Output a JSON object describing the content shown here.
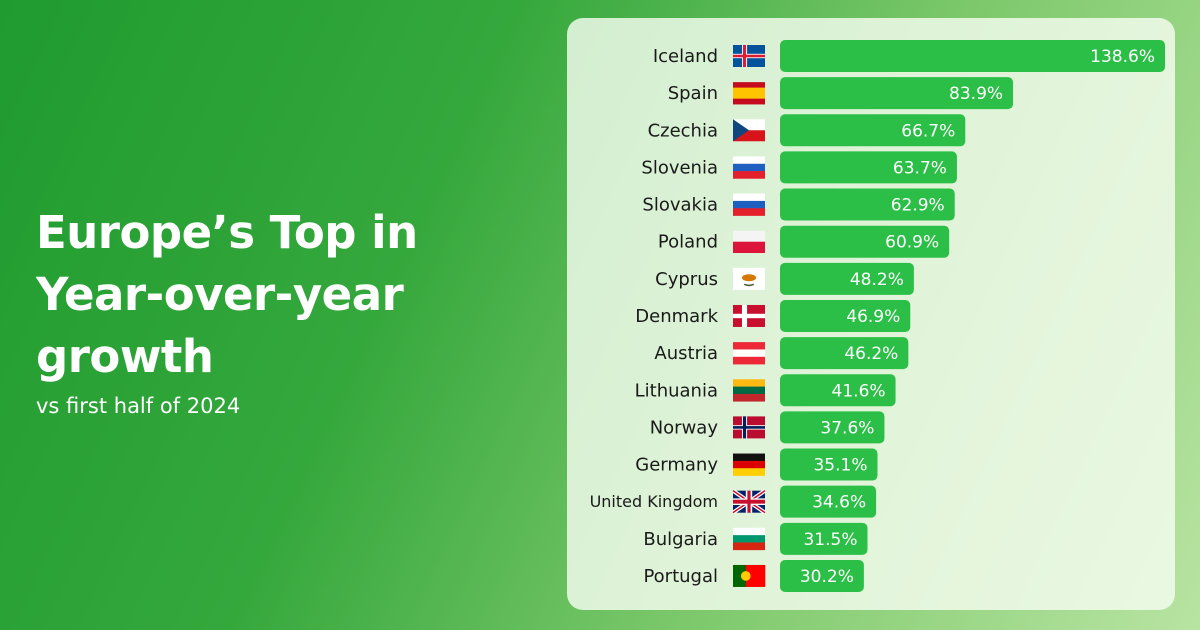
{
  "chart_data": {
    "type": "bar",
    "orientation": "horizontal",
    "title": "Europe’s Top in Year-over-year growth",
    "subtitle": "vs first half of 2024",
    "categories": [
      "Iceland",
      "Spain",
      "Czechia",
      "Slovenia",
      "Slovakia",
      "Poland",
      "Cyprus",
      "Denmark",
      "Austria",
      "Lithuania",
      "Norway",
      "Germany",
      "United Kingdom",
      "Bulgaria",
      "Portugal"
    ],
    "values": [
      138.6,
      83.9,
      66.7,
      63.7,
      62.9,
      60.9,
      48.2,
      46.9,
      46.2,
      41.6,
      37.6,
      35.1,
      34.6,
      31.5,
      30.2
    ],
    "value_labels": [
      "138.6%",
      "83.9%",
      "66.7%",
      "63.7%",
      "62.9%",
      "60.9%",
      "48.2%",
      "46.9%",
      "46.2%",
      "41.6%",
      "37.6%",
      "35.1%",
      "34.6%",
      "31.5%",
      "30.2%"
    ],
    "color": "#2cbf47"
  }
}
